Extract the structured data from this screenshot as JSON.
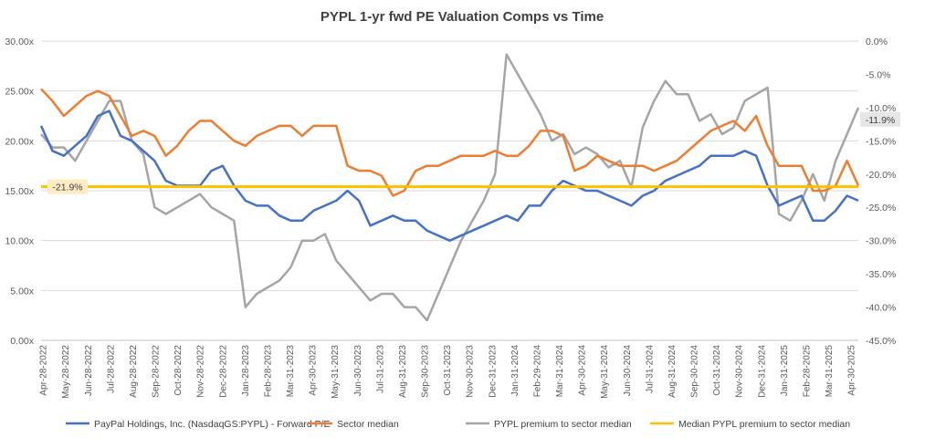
{
  "chart_data": {
    "type": "line",
    "title": "PYPL 1-yr fwd PE Valuation Comps vs Time",
    "x_tick_labels": [
      "Apr-28-2022",
      "May-28-2022",
      "Jun-28-2022",
      "Jul-28-2022",
      "Aug-28-2022",
      "Sep-28-2022",
      "Oct-28-2022",
      "Nov-28-2022",
      "Dec-28-2022",
      "Jan-28-2023",
      "Feb-28-2023",
      "Mar-31-2023",
      "Apr-30-2023",
      "May-31-2023",
      "Jun-30-2023",
      "Jul-31-2023",
      "Aug-31-2023",
      "Sep-30-2023",
      "Oct-31-2023",
      "Nov-30-2023",
      "Dec-31-2023",
      "Jan-31-2024",
      "Feb-29-2024",
      "Mar-31-2024",
      "Apr-30-2024",
      "May-31-2024",
      "Jun-30-2024",
      "Jul-31-2024",
      "Aug-31-2024",
      "Sep-30-2024",
      "Oct-31-2024",
      "Nov-30-2024",
      "Dec-31-2024",
      "Jan-31-2025",
      "Feb-28-2025",
      "Mar-31-2025",
      "Apr-30-2025"
    ],
    "y_left": {
      "ticks": [
        "0.00x",
        "5.00x",
        "10.00x",
        "15.00x",
        "20.00x",
        "25.00x",
        "30.00x"
      ],
      "range": [
        0,
        30
      ]
    },
    "y_right": {
      "ticks": [
        "0.0%",
        "-5.0%",
        "-10.0%",
        "-15.0%",
        "-20.0%",
        "-25.0%",
        "-30.0%",
        "-35.0%",
        "-40.0%",
        "-45.0%"
      ],
      "range": [
        -45,
        0
      ]
    },
    "grid": "horizontal",
    "legend_position": "bottom",
    "series": [
      {
        "name": "PayPal Holdings, Inc. (NasdaqGS:PYPL) - Forward P/E",
        "axis": "left",
        "color": "#4472C4",
        "values": [
          21.5,
          19,
          18.5,
          19.5,
          20.5,
          22.5,
          23,
          20.5,
          20,
          19,
          18,
          16,
          15.5,
          15.5,
          15.5,
          17,
          17.5,
          15.5,
          14,
          13.5,
          13.5,
          12.5,
          12,
          12,
          13,
          13.5,
          14,
          15,
          14,
          11.5,
          12,
          12.5,
          12,
          12,
          11,
          10.5,
          10,
          10.5,
          11,
          11.5,
          12,
          12.5,
          12,
          13.5,
          13.5,
          15,
          16,
          15.5,
          15,
          15,
          14.5,
          14,
          13.5,
          14.5,
          15,
          16,
          16.5,
          17,
          17.5,
          18.5,
          18.5,
          18.5,
          19,
          18.5,
          15.5,
          13.5,
          14,
          14.5,
          12,
          12,
          13,
          14.5,
          14
        ]
      },
      {
        "name": "Sector median",
        "axis": "left",
        "color": "#ED7D31",
        "values": [
          25.2,
          24,
          22.5,
          23.5,
          24.5,
          25,
          24.5,
          22.5,
          20.5,
          21,
          20.5,
          18.5,
          19.5,
          21,
          22,
          22,
          21,
          20,
          19.5,
          20.5,
          21,
          21.5,
          21.5,
          20.5,
          21.5,
          21.5,
          21.5,
          17.5,
          17,
          17,
          16.5,
          14.5,
          15,
          17,
          17.5,
          17.5,
          18,
          18.5,
          18.5,
          18.5,
          19,
          18.5,
          18.5,
          19.5,
          21,
          21,
          20.5,
          17,
          17.5,
          18.5,
          18,
          17.5,
          17.5,
          17.5,
          17,
          17.5,
          18,
          19,
          20,
          21,
          21.5,
          22,
          21,
          22.5,
          19.5,
          17.5,
          17.5,
          17.5,
          15,
          15,
          15.5,
          18,
          15.5
        ]
      },
      {
        "name": "PYPL premium to sector median",
        "axis": "right",
        "color": "#A5A5A5",
        "values": [
          -14,
          -16,
          -16,
          -18,
          -15,
          -12,
          -9,
          -9,
          -15,
          -17,
          -25,
          -26,
          -25,
          -24,
          -23,
          -25,
          -26,
          -27,
          -40,
          -38,
          -37,
          -36,
          -34,
          -30,
          -30,
          -29,
          -33,
          -35,
          -37,
          -39,
          -38,
          -38,
          -40,
          -40,
          -42,
          -38,
          -34,
          -30,
          -27,
          -24,
          -20,
          -2,
          -5,
          -8,
          -11,
          -15,
          -14,
          -17,
          -16,
          -17,
          -19,
          -18,
          -22,
          -13,
          -9,
          -6,
          -8,
          -8,
          -12,
          -11,
          -14,
          -13,
          -9,
          -8,
          -7,
          -26,
          -27,
          -24,
          -20,
          -24,
          -18,
          -14,
          -10
        ]
      },
      {
        "name": "Median PYPL premium to sector median",
        "axis": "right",
        "color": "#FFC000",
        "values": [
          -21.9,
          -21.9
        ]
      }
    ],
    "annotations": [
      "-21.9%",
      "-11.9%"
    ]
  }
}
